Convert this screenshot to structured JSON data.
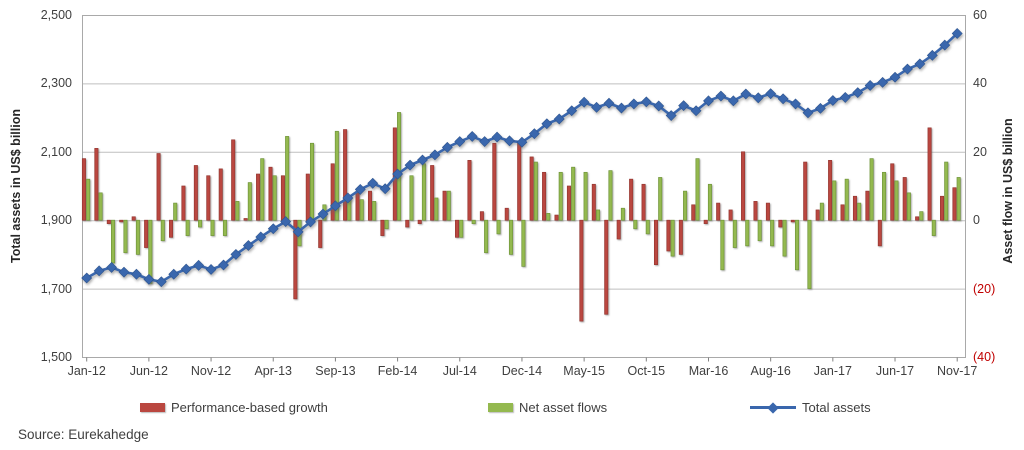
{
  "chart_data": {
    "type": "combo-bar-line",
    "months": [
      "Jan-12",
      "Feb-12",
      "Mar-12",
      "Apr-12",
      "May-12",
      "Jun-12",
      "Jul-12",
      "Aug-12",
      "Sep-12",
      "Oct-12",
      "Nov-12",
      "Dec-12",
      "Jan-13",
      "Feb-13",
      "Mar-13",
      "Apr-13",
      "May-13",
      "Jun-13",
      "Jul-13",
      "Aug-13",
      "Sep-13",
      "Oct-13",
      "Nov-13",
      "Dec-13",
      "Jan-14",
      "Feb-14",
      "Mar-14",
      "Apr-14",
      "May-14",
      "Jun-14",
      "Jul-14",
      "Aug-14",
      "Sep-14",
      "Oct-14",
      "Nov-14",
      "Dec-14",
      "Jan-15",
      "Feb-15",
      "Mar-15",
      "Apr-15",
      "May-15",
      "Jun-15",
      "Jul-15",
      "Aug-15",
      "Sep-15",
      "Oct-15",
      "Nov-15",
      "Dec-15",
      "Jan-16",
      "Feb-16",
      "Mar-16",
      "Apr-16",
      "May-16",
      "Jun-16",
      "Jul-16",
      "Aug-16",
      "Sep-16",
      "Oct-16",
      "Nov-16",
      "Dec-16",
      "Jan-17",
      "Feb-17",
      "Mar-17",
      "Apr-17",
      "May-17",
      "Jun-17",
      "Jul-17",
      "Aug-17",
      "Sep-17",
      "Oct-17",
      "Nov-17"
    ],
    "x_tick_every": 5,
    "series": [
      {
        "name": "Performance-based growth",
        "type": "bar",
        "axis": "right",
        "color": "#ba4740",
        "edge": "#963832",
        "values": [
          18,
          21,
          -1,
          -0.5,
          1,
          -8,
          19.5,
          -5,
          10,
          16,
          13,
          15,
          23.5,
          0.5,
          13.5,
          15.5,
          13,
          -23,
          13.5,
          -8,
          16.5,
          26.5,
          8,
          8.5,
          -4.5,
          27,
          -2,
          -1,
          16,
          8.5,
          -5,
          17.5,
          2.5,
          22.5,
          3.5,
          23,
          18.5,
          14,
          1.5,
          10,
          -29.5,
          10.5,
          -27.5,
          -5.5,
          12,
          10.5,
          -13,
          -9,
          -10,
          4.5,
          -1,
          5,
          3,
          20,
          5.5,
          5,
          -2,
          -0.5,
          17,
          3,
          17.5,
          4.5,
          7,
          8.5,
          -7.5,
          16.5,
          12.5,
          1,
          27,
          7,
          9.5
        ]
      },
      {
        "name": "Net asset flows",
        "type": "bar",
        "axis": "right",
        "color": "#94b94f",
        "edge": "#71963b",
        "values": [
          12,
          8,
          -12.5,
          -9.5,
          -10,
          -18.5,
          -6,
          5,
          -4.5,
          -2,
          -4.5,
          -4.5,
          5.5,
          11,
          18,
          13,
          24.5,
          -7.5,
          22.5,
          4.5,
          26,
          7,
          6,
          5.5,
          -2.5,
          31.5,
          13,
          16.5,
          6.5,
          8.5,
          -5,
          -1,
          -9.5,
          -4,
          -10,
          -13.5,
          17,
          2,
          14,
          15.5,
          14,
          3,
          14.5,
          3.5,
          -2.5,
          -4,
          12.5,
          -10.5,
          8.5,
          18,
          10.5,
          -14.5,
          -8,
          -7.5,
          -6,
          -7.5,
          -10.5,
          -14.5,
          -20,
          5,
          11.5,
          12,
          5,
          18,
          14,
          11.5,
          8,
          2.5,
          -4.5,
          17,
          12.5
        ]
      },
      {
        "name": "Total assets",
        "type": "line",
        "axis": "left",
        "color": "#3a67ad",
        "edge": "#2e5590",
        "values": [
          1731,
          1752,
          1762,
          1748,
          1742,
          1727,
          1720,
          1742,
          1757,
          1768,
          1756,
          1769,
          1800,
          1826,
          1851,
          1875,
          1896,
          1866,
          1895,
          1918,
          1942,
          1965,
          1990,
          2008,
          1992,
          2035,
          2061,
          2076,
          2091,
          2113,
          2130,
          2145,
          2130,
          2143,
          2132,
          2128,
          2153,
          2182,
          2196,
          2220,
          2245,
          2230,
          2242,
          2228,
          2240,
          2246,
          2234,
          2206,
          2235,
          2220,
          2249,
          2263,
          2249,
          2269,
          2258,
          2270,
          2255,
          2240,
          2214,
          2227,
          2250,
          2259,
          2273,
          2294,
          2303,
          2318,
          2342,
          2357,
          2382,
          2412,
          2446
        ]
      }
    ],
    "left_axis": {
      "title": "Total assets in US$ billion",
      "min": 1500,
      "max": 2500,
      "step": 200,
      "tick_labels": [
        "2,500",
        "2,300",
        "2,100",
        "1,900",
        "1,700",
        "1,500"
      ]
    },
    "right_axis": {
      "title": "Asset flow in US$ billion",
      "min": -40,
      "max": 60,
      "step": 20,
      "tick_labels": [
        "60",
        "40",
        "20",
        "0",
        "(20)",
        "(40)"
      ]
    },
    "legend": [
      {
        "label": "Performance-based growth",
        "marker": "bar-swatch",
        "color": "#ba4740"
      },
      {
        "label": "Net asset flows",
        "marker": "bar-swatch",
        "color": "#94b94f"
      },
      {
        "label": "Total assets",
        "marker": "line-diamond",
        "color": "#3a67ad"
      }
    ],
    "grid": true,
    "colors": {
      "gridline": "#bfbfbf",
      "border": "#a9a9a9",
      "tick_text": "#3f3f3f",
      "negative_tick_text": "#c00000"
    },
    "source": "Source: Eurekahedge"
  }
}
